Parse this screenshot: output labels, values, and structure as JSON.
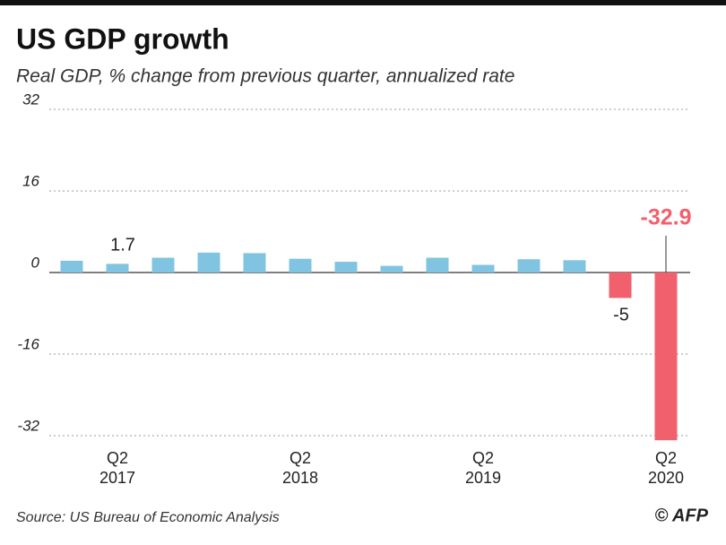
{
  "chart_data": {
    "type": "bar",
    "title": "US GDP growth",
    "subtitle": "Real GDP, % change from previous quarter, annualized rate",
    "source": "Source: US Bureau of Economic Analysis",
    "credit": "© AFP",
    "categories": [
      null,
      "Q2 2017",
      null,
      null,
      null,
      "Q2 2018",
      null,
      null,
      null,
      "Q2 2019",
      null,
      null,
      null,
      "Q2 2020"
    ],
    "values": [
      2.3,
      1.7,
      2.9,
      3.9,
      3.8,
      2.7,
      2.1,
      1.3,
      2.9,
      1.5,
      2.6,
      2.4,
      -5,
      -32.9
    ],
    "value_labels": [
      null,
      "1.7",
      null,
      null,
      null,
      null,
      null,
      null,
      null,
      null,
      null,
      null,
      "-5",
      "-32.9"
    ],
    "colors": [
      "#80c4e1",
      "#80c4e1",
      "#80c4e1",
      "#80c4e1",
      "#80c4e1",
      "#80c4e1",
      "#80c4e1",
      "#80c4e1",
      "#80c4e1",
      "#80c4e1",
      "#80c4e1",
      "#80c4e1",
      "#f0616d",
      "#f0616d"
    ],
    "ylim": [
      -33,
      32
    ],
    "yticks": [
      32,
      16,
      0,
      -16,
      -32
    ],
    "grid": true
  }
}
